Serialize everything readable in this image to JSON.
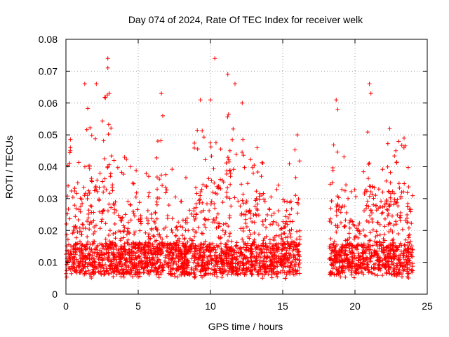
{
  "chart_data": {
    "type": "scatter",
    "title": "Day 074 of 2024, Rate Of TEC Index for receiver welk",
    "xlabel": "GPS time / hours",
    "ylabel": "ROTI / TECUs",
    "xlim": [
      0,
      25
    ],
    "ylim": [
      0,
      0.08
    ],
    "xticks": [
      0,
      5,
      10,
      15,
      20,
      25
    ],
    "xtick_labels": [
      "0",
      "5",
      "10",
      "15",
      "20",
      "25"
    ],
    "yticks": [
      0,
      0.01,
      0.02,
      0.03,
      0.04,
      0.05,
      0.06,
      0.07,
      0.08
    ],
    "ytick_labels": [
      "0",
      "0.01",
      "0.02",
      "0.03",
      "0.04",
      "0.05",
      "0.06",
      "0.07",
      "0.08"
    ],
    "grid": true,
    "marker": "+",
    "series_color": "#ff0000",
    "coverage_hours": [
      [
        0,
        16.2
      ],
      [
        18.2,
        24
      ]
    ],
    "notable_points": [
      {
        "x": 0.3,
        "y": 0.045
      },
      {
        "x": 1.3,
        "y": 0.066
      },
      {
        "x": 2.1,
        "y": 0.066
      },
      {
        "x": 2.9,
        "y": 0.074
      },
      {
        "x": 2.9,
        "y": 0.071
      },
      {
        "x": 3.0,
        "y": 0.063
      },
      {
        "x": 6.6,
        "y": 0.063
      },
      {
        "x": 6.7,
        "y": 0.056
      },
      {
        "x": 9.3,
        "y": 0.061
      },
      {
        "x": 10.0,
        "y": 0.061
      },
      {
        "x": 10.3,
        "y": 0.074
      },
      {
        "x": 11.2,
        "y": 0.069
      },
      {
        "x": 11.7,
        "y": 0.066
      },
      {
        "x": 12.2,
        "y": 0.06
      },
      {
        "x": 16.0,
        "y": 0.05
      },
      {
        "x": 18.7,
        "y": 0.061
      },
      {
        "x": 18.8,
        "y": 0.058
      },
      {
        "x": 21.0,
        "y": 0.066
      },
      {
        "x": 21.1,
        "y": 0.063
      },
      {
        "x": 22.4,
        "y": 0.052
      },
      {
        "x": 23.4,
        "y": 0.049
      }
    ]
  }
}
